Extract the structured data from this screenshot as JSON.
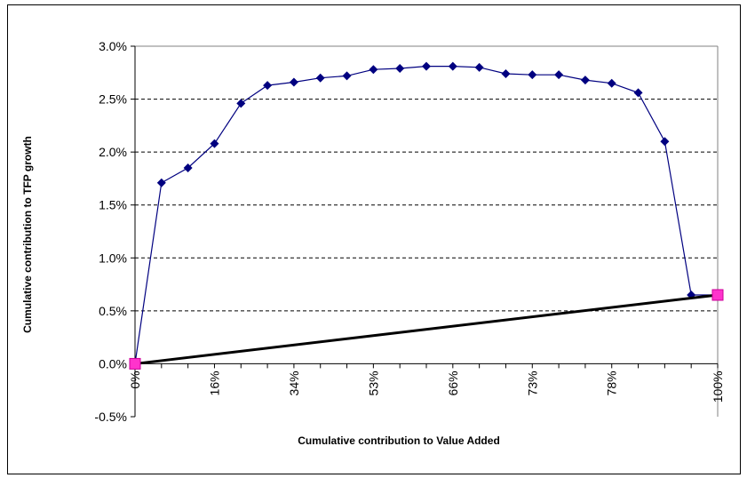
{
  "chart_data": {
    "type": "line",
    "title": "",
    "xlabel": "Cumulative contribution to Value  Added",
    "ylabel": "Cumulative contribution to TFP growth",
    "ylim": [
      -0.005,
      0.03
    ],
    "yticks": [
      "-0.5%",
      "0.0%",
      "0.5%",
      "1.0%",
      "1.5%",
      "2.0%",
      "2.5%",
      "3.0%"
    ],
    "ytick_values": [
      -0.005,
      0,
      0.005,
      0.01,
      0.015,
      0.02,
      0.025,
      0.03
    ],
    "xtick_labels": [
      "0%",
      "16%",
      "34%",
      "53%",
      "66%",
      "73%",
      "78%",
      "100%"
    ],
    "xtick_index": [
      0,
      3,
      6,
      9,
      12,
      15,
      18,
      22
    ],
    "num_points": 23,
    "grid": "horizontal dashed",
    "legend": "none",
    "series": [
      {
        "marker": "diamond",
        "color": "#000080",
        "values": [
          0.0,
          0.0171,
          0.0185,
          0.0208,
          0.0246,
          0.0263,
          0.0266,
          0.027,
          0.0272,
          0.0278,
          0.0279,
          0.0281,
          0.0281,
          0.028,
          0.0274,
          0.0273,
          0.0273,
          0.0268,
          0.0265,
          0.0256,
          0.021,
          0.0065,
          0.0065
        ]
      },
      {
        "marker": "square",
        "color": "#000000",
        "marker_color": "#ff33cc",
        "values": [
          0.0,
          0.0065
        ]
      }
    ]
  }
}
